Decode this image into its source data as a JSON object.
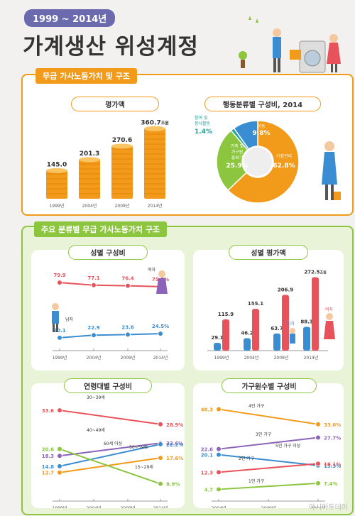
{
  "header": {
    "year_badge": "1999 ~ 2014년",
    "title": "가계생산 위성계정"
  },
  "section1": {
    "label": "무급 가사노동가치 및 구조"
  },
  "section2": {
    "label": "주요 분류별 무급 가사노동가치 구조"
  },
  "watermark": "아시아투데이",
  "colors": {
    "orange": "#f29a1a",
    "green": "#8cc63f",
    "blue": "#3a8dd0",
    "red": "#e8525a",
    "purple": "#8b63b8"
  },
  "chart_data": [
    {
      "id": "value",
      "type": "bar",
      "title": "평가액",
      "categories": [
        "1999년",
        "2004년",
        "2009년",
        "2014년"
      ],
      "values": [
        145.0,
        201.3,
        270.6,
        360.7
      ],
      "value_labels": [
        "145.0",
        "201.3",
        "270.6",
        "360.7"
      ],
      "unit": "조원"
    },
    {
      "id": "activity",
      "type": "pie",
      "title": "행동분류별 구성비, 2014",
      "slices": [
        {
          "name": "가정관리",
          "value": 62.8,
          "label": "62.8%",
          "color": "#f29a1a"
        },
        {
          "name": "가족 및 가구원 돌보기",
          "value": 25.9,
          "label": "25.9%",
          "color": "#8cc63f"
        },
        {
          "name": "참여 및 봉사활동",
          "value": 1.4,
          "label": "1.4%",
          "color": "#1aa39a"
        },
        {
          "name": "이동",
          "value": 9.8,
          "label": "9.8%",
          "color": "#3a8dd0"
        }
      ],
      "slice_texts": {
        "home": "가정관리",
        "care1": "가족 및",
        "care2": "가구원",
        "care3": "돌보기",
        "move": "이동",
        "vol1": "참여 및",
        "vol2": "봉사활동"
      }
    },
    {
      "id": "gender_share",
      "type": "line",
      "title": "성별 구성비",
      "categories": [
        "1999년",
        "2004년",
        "2009년",
        "2014년"
      ],
      "series": [
        {
          "name": "여자",
          "values": [
            79.9,
            77.1,
            76.4,
            75.5
          ],
          "labels": [
            "79.9",
            "77.1",
            "76.4",
            "75.5%"
          ],
          "color": "#e8525a"
        },
        {
          "name": "남자",
          "values": [
            20.1,
            22.9,
            23.6,
            24.5
          ],
          "labels": [
            "20.1",
            "22.9",
            "23.6",
            "24.5%"
          ],
          "color": "#3a8dd0"
        }
      ]
    },
    {
      "id": "gender_value",
      "type": "bar",
      "title": "성별 평가액",
      "categories": [
        "1999년",
        "2004년",
        "2009년",
        "2014년"
      ],
      "unit": "조원",
      "series": [
        {
          "name": "남자",
          "values": [
            29.1,
            46.2,
            63.7,
            88.3
          ],
          "labels": [
            "29.1",
            "46.2",
            "63.7",
            "88.3"
          ],
          "color": "#3a8dd0"
        },
        {
          "name": "여자",
          "values": [
            115.9,
            155.1,
            206.9,
            272.5
          ],
          "labels": [
            "115.9",
            "155.1",
            "206.9",
            "272.5"
          ],
          "color": "#e8525a"
        }
      ]
    },
    {
      "id": "age_share",
      "type": "line",
      "title": "연령대별 구성비",
      "categories": [
        "1999년",
        "2004년",
        "2009년",
        "2014년"
      ],
      "series": [
        {
          "name": "30~39세",
          "values": [
            33.6,
            null,
            null,
            28.9
          ],
          "labels": [
            "33.6",
            "",
            "",
            "28.9%"
          ],
          "color": "#e8525a"
        },
        {
          "name": "40~49세",
          "values": [
            18.3,
            null,
            null,
            22.6
          ],
          "labels": [
            "18.3",
            "",
            "",
            "22.6%"
          ],
          "color": "#8b63b8"
        },
        {
          "name": "60세 이상",
          "values": [
            14.8,
            null,
            null,
            22.2
          ],
          "labels": [
            "14.8",
            "",
            "",
            "22.2%"
          ],
          "color": "#3a8dd0"
        },
        {
          "name": "50~59세",
          "values": [
            12.7,
            null,
            null,
            17.6
          ],
          "labels": [
            "12.7",
            "",
            "",
            "17.6%"
          ],
          "color": "#f29a1a"
        },
        {
          "name": "15~29세",
          "values": [
            20.6,
            null,
            null,
            8.9
          ],
          "labels": [
            "20.6",
            "",
            "",
            "8.9%"
          ],
          "color": "#8cc63f"
        }
      ]
    },
    {
      "id": "household_share",
      "type": "line",
      "title": "가구원수별 구성비",
      "categories": [
        "2004년",
        "2009년",
        "2014년"
      ],
      "series": [
        {
          "name": "4인 가구",
          "values": [
            40.3,
            null,
            33.6
          ],
          "labels": [
            "40.3",
            "",
            "33.6%"
          ],
          "color": "#f29a1a"
        },
        {
          "name": "3인 가구",
          "values": [
            22.6,
            null,
            27.7
          ],
          "labels": [
            "22.6",
            "",
            "27.7%"
          ],
          "color": "#8b63b8"
        },
        {
          "name": "5인 가구 이상",
          "values": [
            20.1,
            null,
            15.3
          ],
          "labels": [
            "20.1",
            "",
            "15.3%"
          ],
          "color": "#3a8dd0"
        },
        {
          "name": "2인 가구",
          "values": [
            12.3,
            null,
            16.1
          ],
          "labels": [
            "12.3",
            "",
            "16.1%"
          ],
          "color": "#e8525a"
        },
        {
          "name": "1인 가구",
          "values": [
            4.7,
            null,
            7.4
          ],
          "labels": [
            "4.7",
            "",
            "7.4%"
          ],
          "color": "#8cc63f"
        }
      ]
    }
  ]
}
